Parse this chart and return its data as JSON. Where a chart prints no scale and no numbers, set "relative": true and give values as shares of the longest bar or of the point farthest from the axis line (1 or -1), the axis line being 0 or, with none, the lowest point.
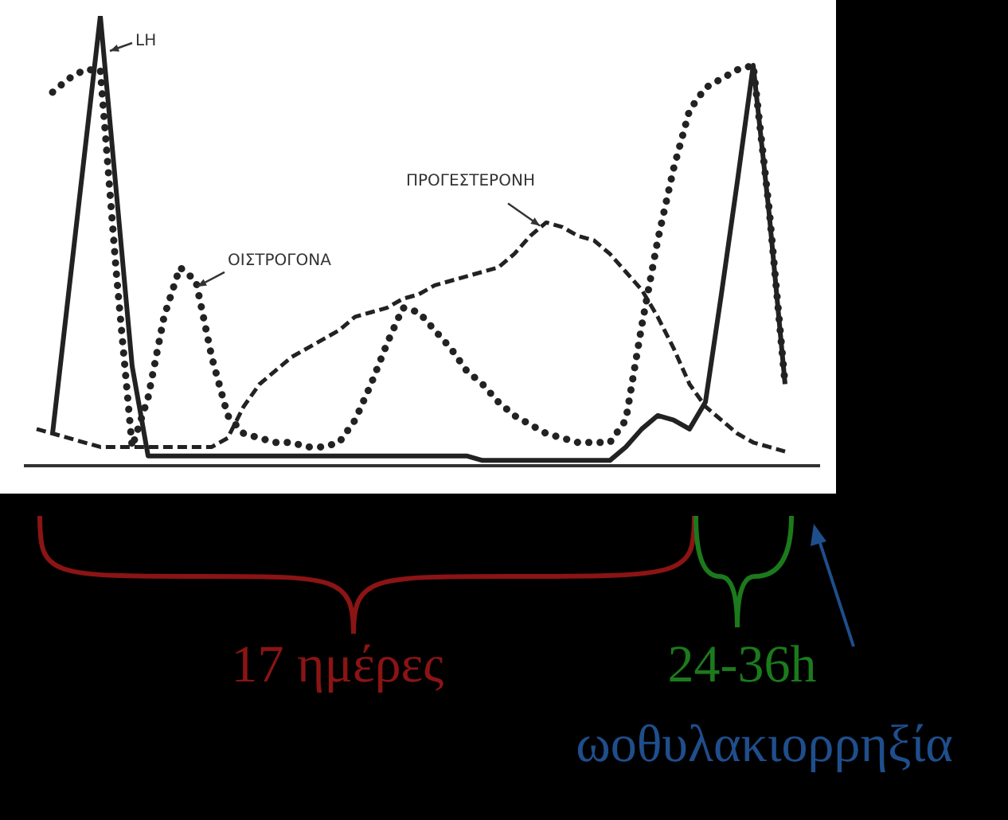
{
  "chart_data": {
    "type": "line",
    "relative": true,
    "legend": false,
    "grid": false,
    "marker": "none",
    "categories": [
      null,
      null,
      null,
      null,
      null,
      null,
      null,
      null,
      null,
      null,
      null,
      null,
      null,
      null,
      null,
      null,
      null,
      null,
      null,
      null,
      null,
      null,
      null,
      null,
      null,
      null,
      null,
      null,
      null,
      null,
      null,
      null,
      null,
      null,
      null,
      null,
      null,
      null,
      null,
      null,
      null,
      null,
      null,
      null,
      null,
      null,
      null,
      null,
      null,
      null
    ],
    "series": [
      {
        "name": "LH",
        "color": "#222222",
        "line_style": "solid",
        "values": [
          null,
          0.07,
          0.38,
          0.69,
          1,
          0.61,
          0.22,
          0.02,
          0.02,
          0.02,
          0.02,
          0.02,
          0.02,
          0.02,
          0.02,
          0.02,
          0.02,
          0.02,
          0.02,
          0.02,
          0.02,
          0.02,
          0.02,
          0.02,
          0.02,
          0.02,
          0.02,
          0.02,
          0.01,
          0.01,
          0.01,
          0.01,
          0.01,
          0.01,
          0.01,
          0.01,
          0.01,
          0.04,
          0.08,
          0.11,
          0.1,
          0.08,
          0.14,
          0.38,
          0.63,
          0.89,
          0.56,
          0.18,
          null,
          null
        ]
      },
      {
        "name": "ΟΙΣΤΡΟΓΟΝΑ",
        "color": "#222222",
        "line_style": "dotted",
        "values": [
          null,
          0.83,
          0.86,
          0.88,
          0.88,
          0.43,
          0.04,
          0.15,
          0.33,
          0.44,
          0.41,
          0.24,
          0.11,
          0.07,
          0.06,
          0.05,
          0.05,
          0.04,
          0.04,
          0.05,
          0.1,
          0.18,
          0.27,
          0.35,
          0.34,
          0.3,
          0.26,
          0.21,
          0.18,
          0.14,
          0.11,
          0.09,
          0.07,
          0.06,
          0.05,
          0.05,
          0.05,
          0.1,
          0.31,
          0.5,
          0.66,
          0.79,
          0.84,
          0.86,
          0.88,
          0.89,
          0.57,
          0.18,
          null,
          null
        ]
      },
      {
        "name": "ΠΡΟΓΕΣΤΕΡΟΝΗ",
        "color": "#222222",
        "line_style": "dashed",
        "values": [
          0.08,
          0.07,
          0.06,
          0.05,
          0.04,
          0.04,
          0.04,
          0.04,
          0.04,
          0.04,
          0.04,
          0.04,
          0.06,
          0.13,
          0.18,
          0.21,
          0.24,
          0.26,
          0.28,
          0.3,
          0.33,
          0.34,
          0.35,
          0.37,
          0.38,
          0.4,
          0.41,
          0.42,
          0.43,
          0.44,
          0.47,
          0.51,
          0.54,
          0.53,
          0.51,
          0.5,
          0.47,
          0.43,
          0.39,
          0.33,
          0.26,
          0.18,
          0.13,
          0.1,
          0.07,
          0.05,
          0.04,
          0.03,
          null,
          null
        ]
      }
    ],
    "annotations": [
      "17 ημέρες",
      "24-36h",
      "ωοθυλακιορρηξία"
    ]
  }
}
